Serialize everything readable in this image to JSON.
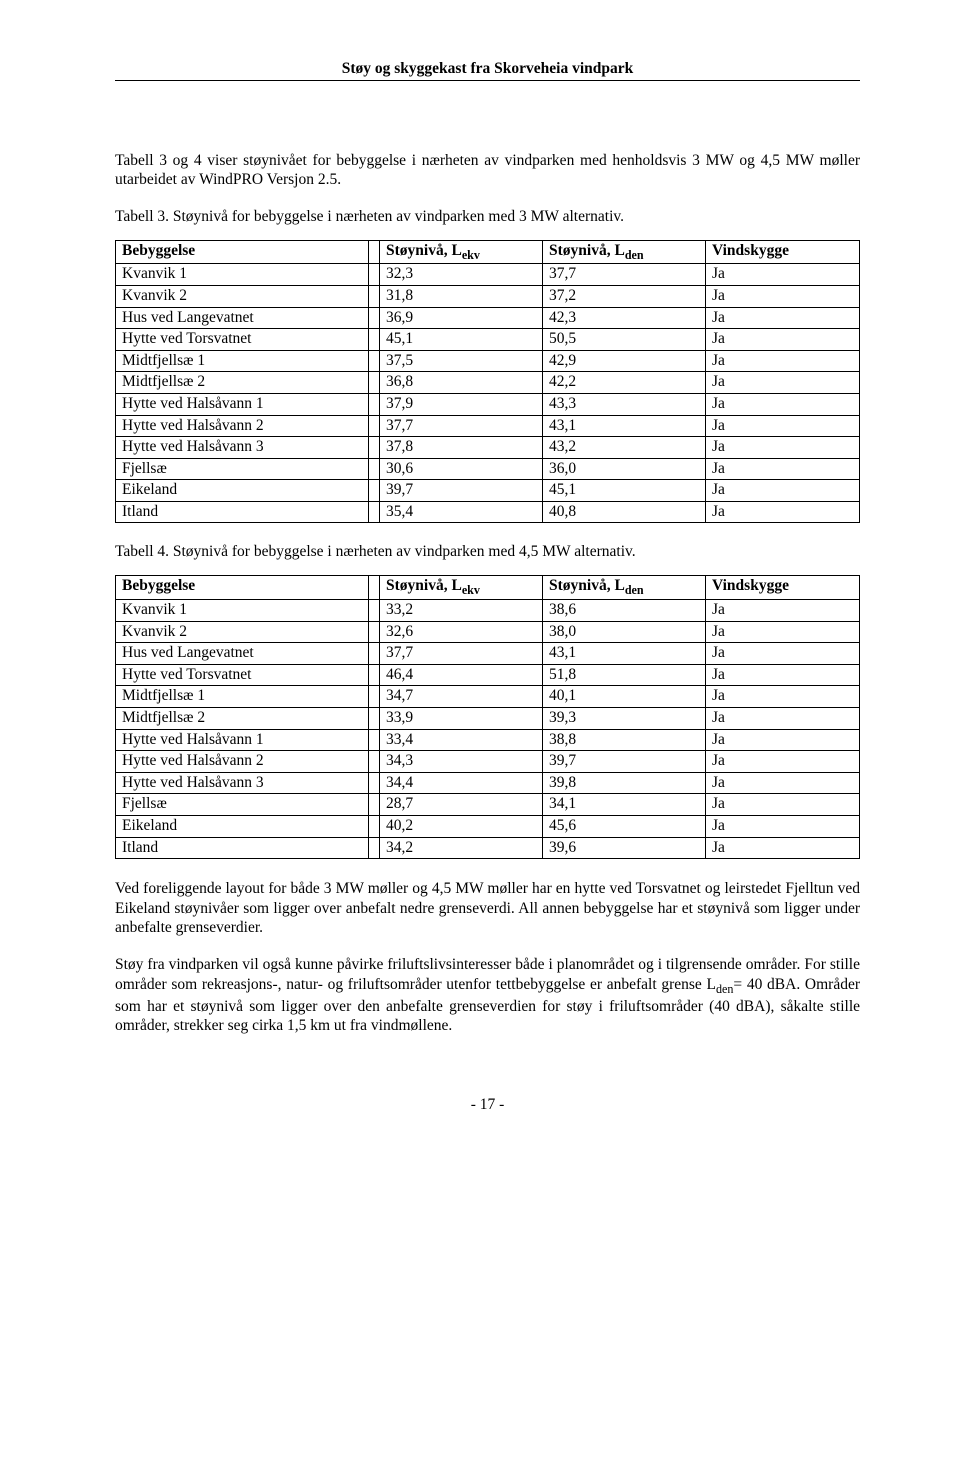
{
  "doc_header": "Støy og skyggekast fra Skorveheia vindpark",
  "intro_para": "Tabell 3 og 4 viser støynivået for bebyggelse i nærheten av vindparken med henholdsvis 3 MW og 4,5 MW møller utarbeidet av WindPRO Versjon 2.5.",
  "table3_caption": "Tabell 3. Støynivå for bebyggelse i nærheten av vindparken med 3 MW alternativ.",
  "table4_caption": "Tabell 4. Støynivå for bebyggelse i nærheten av vindparken med 4,5 MW alternativ.",
  "th_bebyggelse": "Bebyggelse",
  "th_lekv_pre": "Støynivå, L",
  "th_lekv_sub": "ekv",
  "th_lden_pre": "Støynivå, L",
  "th_lden_sub": "den",
  "th_vind": "Vindskygge",
  "table3_rows": [
    {
      "name": "Kvanvik 1",
      "lekv": "32,3",
      "lden": "37,7",
      "vs": "Ja"
    },
    {
      "name": "Kvanvik 2",
      "lekv": "31,8",
      "lden": "37,2",
      "vs": "Ja"
    },
    {
      "name": "Hus ved Langevatnet",
      "lekv": "36,9",
      "lden": "42,3",
      "vs": "Ja"
    },
    {
      "name": "Hytte ved Torsvatnet",
      "lekv": "45,1",
      "lden": "50,5",
      "vs": "Ja"
    },
    {
      "name": "Midtfjellsæ 1",
      "lekv": "37,5",
      "lden": "42,9",
      "vs": "Ja"
    },
    {
      "name": "Midtfjellsæ 2",
      "lekv": "36,8",
      "lden": "42,2",
      "vs": "Ja"
    },
    {
      "name": "Hytte ved Halsåvann 1",
      "lekv": "37,9",
      "lden": "43,3",
      "vs": "Ja"
    },
    {
      "name": "Hytte ved Halsåvann 2",
      "lekv": "37,7",
      "lden": "43,1",
      "vs": "Ja"
    },
    {
      "name": "Hytte ved Halsåvann 3",
      "lekv": "37,8",
      "lden": "43,2",
      "vs": "Ja"
    },
    {
      "name": "Fjellsæ",
      "lekv": "30,6",
      "lden": "36,0",
      "vs": "Ja"
    },
    {
      "name": "Eikeland",
      "lekv": "39,7",
      "lden": "45,1",
      "vs": "Ja"
    },
    {
      "name": "Itland",
      "lekv": "35,4",
      "lden": "40,8",
      "vs": "Ja"
    }
  ],
  "table4_rows": [
    {
      "name": "Kvanvik 1",
      "lekv": "33,2",
      "lden": "38,6",
      "vs": "Ja"
    },
    {
      "name": "Kvanvik 2",
      "lekv": "32,6",
      "lden": "38,0",
      "vs": "Ja"
    },
    {
      "name": "Hus ved Langevatnet",
      "lekv": "37,7",
      "lden": "43,1",
      "vs": "Ja"
    },
    {
      "name": "Hytte ved Torsvatnet",
      "lekv": "46,4",
      "lden": "51,8",
      "vs": "Ja"
    },
    {
      "name": "Midtfjellsæ 1",
      "lekv": "34,7",
      "lden": "40,1",
      "vs": "Ja"
    },
    {
      "name": "Midtfjellsæ 2",
      "lekv": "33,9",
      "lden": "39,3",
      "vs": "Ja"
    },
    {
      "name": "Hytte ved Halsåvann 1",
      "lekv": "33,4",
      "lden": "38,8",
      "vs": "Ja"
    },
    {
      "name": "Hytte ved Halsåvann 2",
      "lekv": "34,3",
      "lden": "39,7",
      "vs": "Ja"
    },
    {
      "name": "Hytte ved Halsåvann 3",
      "lekv": "34,4",
      "lden": "39,8",
      "vs": "Ja"
    },
    {
      "name": "Fjellsæ",
      "lekv": "28,7",
      "lden": "34,1",
      "vs": "Ja"
    },
    {
      "name": "Eikeland",
      "lekv": "40,2",
      "lden": "45,6",
      "vs": "Ja"
    },
    {
      "name": "Itland",
      "lekv": "34,2",
      "lden": "39,6",
      "vs": "Ja"
    }
  ],
  "para_after_tables": "Ved foreliggende layout for både 3 MW møller og 4,5 MW møller har en hytte ved Torsvatnet og leirstedet Fjelltun ved Eikeland støynivåer som ligger over anbefalt nedre grenseverdi. All annen bebyggelse har et støynivå som ligger under anbefalte grenseverdier.",
  "para_last_pre": "Støy fra vindparken vil også kunne påvirke friluftslivsinteresser både i planområdet og i tilgrensende områder. For stille områder som rekreasjons-, natur- og friluftsområder utenfor tettbebyggelse er anbefalt grense L",
  "para_last_sub": "den",
  "para_last_post": "= 40 dBA. Områder som har et støynivå som ligger over den anbefalte grenseverdien for støy i friluftsområder (40 dBA), såkalte stille områder, strekker seg cirka 1,5 km ut fra vindmøllene.",
  "page_number": "- 17 -"
}
